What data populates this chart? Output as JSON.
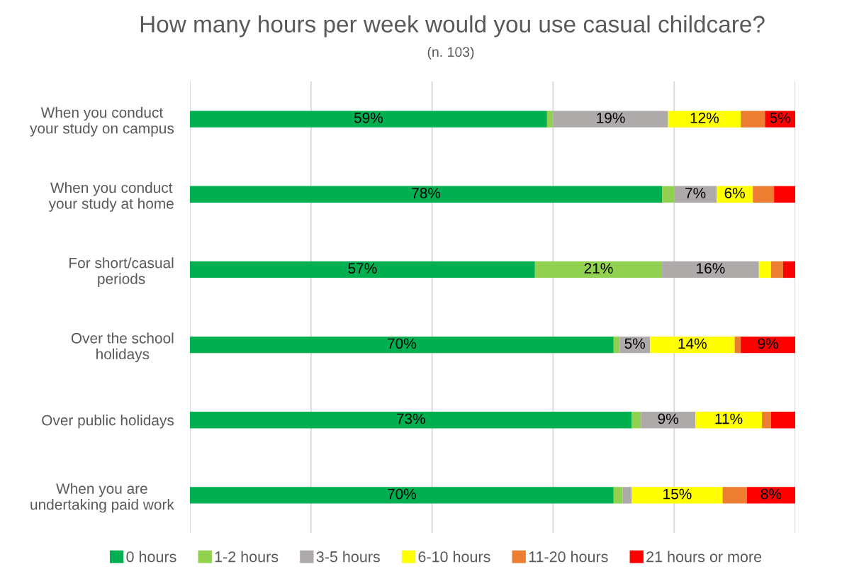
{
  "chart_data": {
    "type": "bar",
    "orientation": "horizontal",
    "stacked": true,
    "title": "How many hours per week would you use casual childcare?",
    "subtitle": "(n. 103)",
    "categories": [
      "When you conduct\nyour study on campus",
      "When you conduct\nyour study at home",
      "For short/casual\nperiods",
      "Over the school\nholidays",
      "Over public holidays",
      "When you are\nundertaking paid work"
    ],
    "series": [
      {
        "name": "0 hours",
        "color": "#00b050",
        "values": [
          59,
          78,
          57,
          70,
          73,
          70
        ],
        "value_labels": [
          "59%",
          "78%",
          "57%",
          "70%",
          "73%",
          "70%"
        ]
      },
      {
        "name": "1-2 hours",
        "color": "#92d050",
        "values": [
          1,
          2,
          21,
          1,
          1.5,
          1.5
        ],
        "value_labels": [
          null,
          null,
          "21%",
          null,
          null,
          null
        ]
      },
      {
        "name": "3-5 hours",
        "color": "#aeaaaa",
        "values": [
          19,
          7,
          16,
          5,
          9,
          1.5
        ],
        "value_labels": [
          "19%",
          "7%",
          "16%",
          "5%",
          "9%",
          null
        ]
      },
      {
        "name": "6-10 hours",
        "color": "#ffff00",
        "values": [
          12,
          6,
          2,
          14,
          11,
          15
        ],
        "value_labels": [
          "12%",
          "6%",
          null,
          "14%",
          "11%",
          "15%"
        ]
      },
      {
        "name": "11-20 hours",
        "color": "#ed7d31",
        "values": [
          4,
          3.5,
          2,
          1,
          1.5,
          4
        ],
        "value_labels": [
          null,
          null,
          null,
          null,
          null,
          null
        ]
      },
      {
        "name": "21 hours or more",
        "color": "#ff0000",
        "values": [
          5,
          3.5,
          2,
          9,
          4,
          8
        ],
        "value_labels": [
          "5%",
          null,
          null,
          "9%",
          null,
          "8%"
        ]
      }
    ],
    "xlim": [
      0,
      100
    ],
    "xticks": [
      {
        "value": 0,
        "label": null
      },
      {
        "value": 20,
        "label": null
      },
      {
        "value": 40,
        "label": null
      },
      {
        "value": 60,
        "label": null
      },
      {
        "value": 80,
        "label": null
      },
      {
        "value": 100,
        "label": null
      }
    ],
    "tick_labels": "y",
    "grid": "x",
    "legend": "bottom"
  }
}
